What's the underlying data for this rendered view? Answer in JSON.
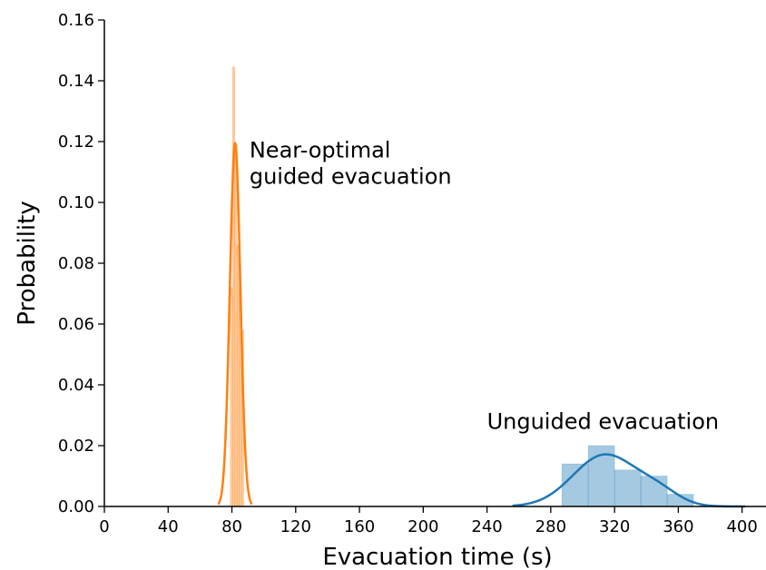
{
  "chart_data": {
    "type": "histogram_kde",
    "xlabel": "Evacuation time (s)",
    "ylabel": "Probability",
    "xlim": [
      0,
      415
    ],
    "ylim": [
      0,
      0.16
    ],
    "xticks": [
      0,
      40,
      80,
      120,
      160,
      200,
      240,
      280,
      320,
      360,
      400
    ],
    "yticks": [
      "0.00",
      "0.02",
      "0.04",
      "0.06",
      "0.08",
      "0.10",
      "0.12",
      "0.14",
      "0.16"
    ],
    "grid": false,
    "series": [
      {
        "name": "Near-optimal guided evacuation",
        "color": "#ff7f0e",
        "bins": [
          {
            "x0": 79.0,
            "x1": 80.4,
            "density": 0.072
          },
          {
            "x0": 80.4,
            "x1": 81.8,
            "density": 0.1445
          },
          {
            "x0": 81.8,
            "x1": 83.2,
            "density": 0.119
          },
          {
            "x0": 83.2,
            "x1": 84.6,
            "density": 0.086
          },
          {
            "x0": 84.6,
            "x1": 86.0,
            "density": 0.072
          },
          {
            "x0": 86.0,
            "x1": 87.4,
            "density": 0.058
          }
        ],
        "kde": {
          "type": "gaussian",
          "mean": 82.0,
          "sd": 3.3,
          "peak": 0.1195
        }
      },
      {
        "name": "Unguided evacuation",
        "color": "#1f77b4",
        "bins": [
          {
            "x0": 287,
            "x1": 303.5,
            "density": 0.014
          },
          {
            "x0": 303.5,
            "x1": 320,
            "density": 0.02
          },
          {
            "x0": 320,
            "x1": 336.5,
            "density": 0.012
          },
          {
            "x0": 336.5,
            "x1": 353,
            "density": 0.01
          },
          {
            "x0": 353,
            "x1": 369.5,
            "density": 0.004
          }
        ],
        "kde": {
          "type": "gaussian_mixture",
          "components": [
            {
              "mean": 314,
              "sd": 20,
              "weight": 0.017
            },
            {
              "mean": 348,
              "sd": 13,
              "weight": 0.004
            }
          ]
        }
      }
    ],
    "annotations": [
      {
        "lines": [
          "Near-optimal",
          "guided evacuation"
        ],
        "x": 91,
        "y": 0.107
      },
      {
        "lines": [
          "Unguided evacuation"
        ],
        "x": 240,
        "y": 0.0255
      }
    ]
  }
}
